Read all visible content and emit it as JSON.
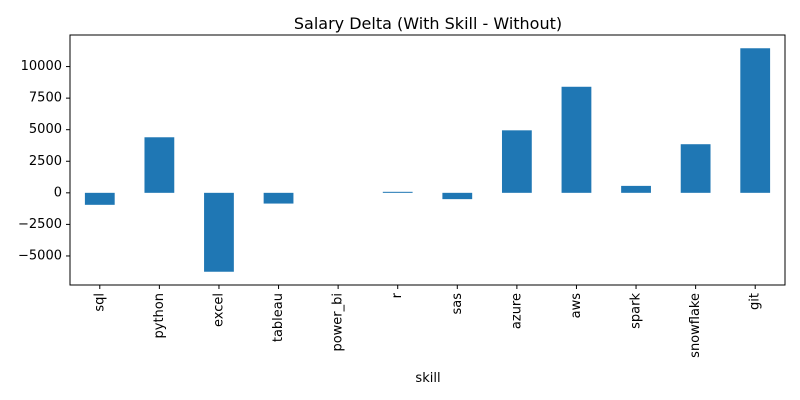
{
  "chart_data": {
    "type": "bar",
    "title": "Salary Delta (With Skill - Without)",
    "xlabel": "skill",
    "ylabel": "",
    "categories": [
      "sql",
      "python",
      "excel",
      "tableau",
      "power_bi",
      "r",
      "sas",
      "azure",
      "aws",
      "spark",
      "snowflake",
      "git"
    ],
    "values": [
      -950,
      4400,
      -6250,
      -850,
      0,
      80,
      -500,
      4950,
      8400,
      550,
      3850,
      11450
    ],
    "ylim": [
      -7300,
      12500
    ],
    "yticks": [
      -5000,
      -2500,
      0,
      2500,
      5000,
      7500,
      10000
    ],
    "ytick_labels": [
      "−5000",
      "−2500",
      "0",
      "2500",
      "5000",
      "7500",
      "10000"
    ],
    "bar_color": "#1f77b4",
    "grid": false,
    "legend": "none"
  }
}
